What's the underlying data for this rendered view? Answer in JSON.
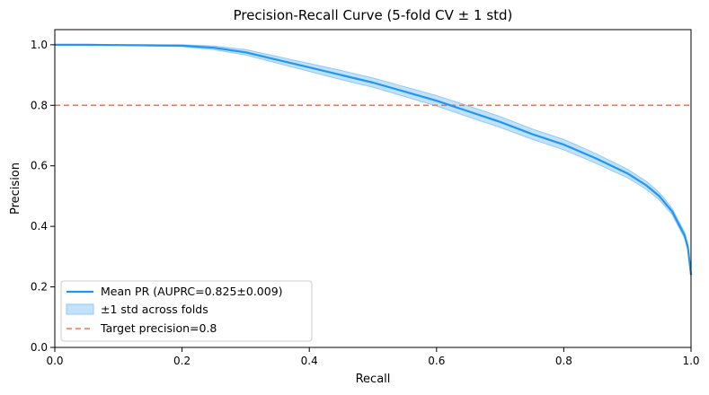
{
  "chart_data": {
    "type": "line",
    "title": "Precision-Recall Curve (5-fold CV ± 1 std)",
    "xlabel": "Recall",
    "ylabel": "Precision",
    "xlim": [
      0.0,
      1.0
    ],
    "ylim": [
      0.0,
      1.05
    ],
    "xticks": [
      "0.0",
      "0.2",
      "0.4",
      "0.6",
      "0.8",
      "1.0"
    ],
    "yticks": [
      "0.0",
      "0.2",
      "0.4",
      "0.6",
      "0.8",
      "1.0"
    ],
    "grid": false,
    "legend_position": "lower-left",
    "series": [
      {
        "name": "Mean PR  (AUPRC=0.825±0.009)",
        "color": "#2196f3",
        "x": [
          0.0,
          0.05,
          0.1,
          0.15,
          0.2,
          0.25,
          0.3,
          0.35,
          0.4,
          0.45,
          0.5,
          0.55,
          0.6,
          0.65,
          0.7,
          0.75,
          0.8,
          0.85,
          0.9,
          0.93,
          0.95,
          0.97,
          0.98,
          0.99,
          0.995,
          1.0
        ],
        "y": [
          1.0,
          1.0,
          0.999,
          0.998,
          0.997,
          0.99,
          0.975,
          0.95,
          0.925,
          0.9,
          0.875,
          0.845,
          0.815,
          0.78,
          0.745,
          0.705,
          0.67,
          0.625,
          0.575,
          0.535,
          0.5,
          0.45,
          0.41,
          0.37,
          0.33,
          0.24
        ],
        "std": [
          0.0,
          0.0,
          0.001,
          0.002,
          0.003,
          0.006,
          0.009,
          0.011,
          0.013,
          0.015,
          0.015,
          0.016,
          0.017,
          0.018,
          0.018,
          0.017,
          0.017,
          0.016,
          0.014,
          0.013,
          0.012,
          0.01,
          0.01,
          0.01,
          0.01,
          0.01
        ]
      }
    ],
    "band_label": "±1 std across folds",
    "band_color": "#90caf9",
    "reference_line": {
      "name": "Target precision=0.8",
      "y": 0.8,
      "color": "#ff7043",
      "style": "dashed"
    }
  }
}
